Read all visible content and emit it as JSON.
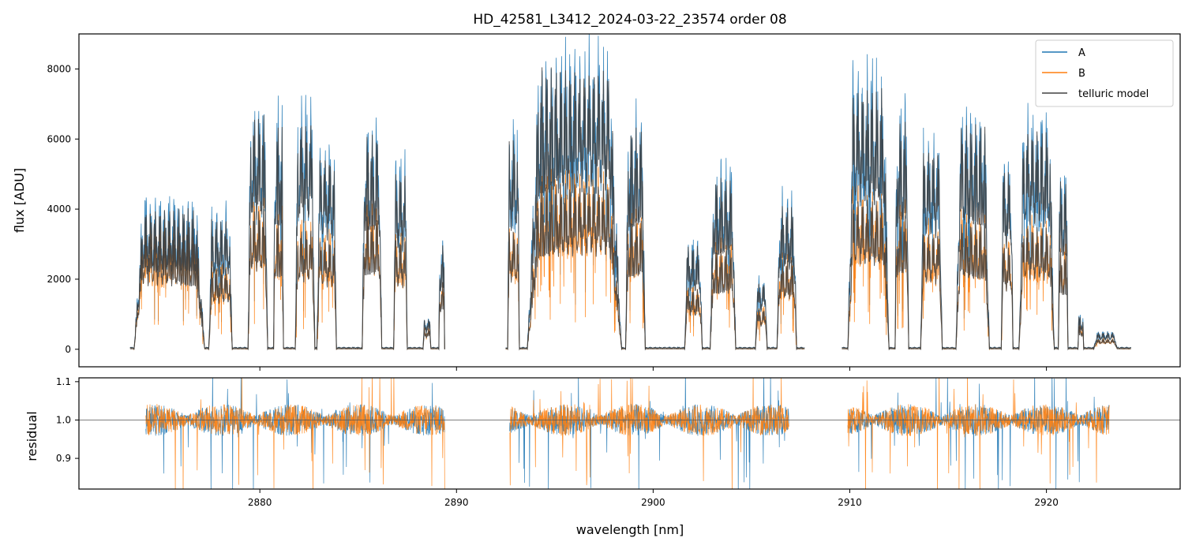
{
  "chart_data": [
    {
      "type": "line",
      "title": "HD_42581_L3412_2024-03-22_23574  order 08",
      "xlabel": "",
      "ylabel": "flux [ADU]",
      "xlim": [
        2870.8,
        2926.8
      ],
      "ylim": [
        -500,
        9000
      ],
      "yticks": [
        0,
        2000,
        4000,
        6000,
        8000
      ],
      "xticks": [
        2880,
        2890,
        2900,
        2910,
        2920
      ],
      "legend": "top-right",
      "series": [
        {
          "name": "A",
          "color": "#1f77b4"
        },
        {
          "name": "B",
          "color": "#ff7f0e"
        },
        {
          "name": "telluric model",
          "color": "#404040"
        }
      ],
      "segments": [
        [
          2873.4,
          2889.4
        ],
        [
          2892.5,
          2907.7
        ],
        [
          2909.6,
          2924.3
        ]
      ],
      "bands": [
        {
          "x": [
            2873.6,
            2877.2
          ],
          "a": 4200,
          "b": 3400
        },
        {
          "x": [
            2877.4,
            2878.6
          ],
          "a": 3900,
          "b": 2450
        },
        {
          "x": [
            2879.4,
            2880.4
          ],
          "a": 7000,
          "b": 4200
        },
        {
          "x": [
            2880.7,
            2881.2
          ],
          "a": 6700,
          "b": 3900
        },
        {
          "x": [
            2881.8,
            2882.8
          ],
          "a": 6800,
          "b": 3600
        },
        {
          "x": [
            2882.9,
            2883.9
          ],
          "a": 5800,
          "b": 3300
        },
        {
          "x": [
            2885.2,
            2886.2
          ],
          "a": 6400,
          "b": 4000
        },
        {
          "x": [
            2886.8,
            2887.5
          ],
          "a": 5300,
          "b": 3300
        },
        {
          "x": [
            2888.3,
            2888.7
          ],
          "a": 900,
          "b": 600
        },
        {
          "x": [
            2889.1,
            2889.4
          ],
          "a": 3100,
          "b": 2000
        },
        {
          "x": [
            2892.6,
            2893.2
          ],
          "a": 6400,
          "b": 3600
        },
        {
          "x": [
            2893.6,
            2898.4
          ],
          "a": 8400,
          "b": 5000
        },
        {
          "x": [
            2898.6,
            2899.6
          ],
          "a": 6600,
          "b": 3900
        },
        {
          "x": [
            2901.6,
            2902.5
          ],
          "a": 3100,
          "b": 1800
        },
        {
          "x": [
            2902.9,
            2904.2
          ],
          "a": 5100,
          "b": 3000
        },
        {
          "x": [
            2905.2,
            2905.8
          ],
          "a": 2000,
          "b": 1200
        },
        {
          "x": [
            2906.3,
            2907.3
          ],
          "a": 4300,
          "b": 2700
        },
        {
          "x": [
            2909.9,
            2912.0
          ],
          "a": 7800,
          "b": 4500
        },
        {
          "x": [
            2912.3,
            2913.0
          ],
          "a": 6800,
          "b": 4000
        },
        {
          "x": [
            2913.6,
            2914.7
          ],
          "a": 6000,
          "b": 3500
        },
        {
          "x": [
            2915.4,
            2917.1
          ],
          "a": 6700,
          "b": 3800
        },
        {
          "x": [
            2917.7,
            2918.3
          ],
          "a": 5400,
          "b": 3100
        },
        {
          "x": [
            2918.6,
            2920.4
          ],
          "a": 6600,
          "b": 3700
        },
        {
          "x": [
            2920.6,
            2921.1
          ],
          "a": 5000,
          "b": 2900
        },
        {
          "x": [
            2921.6,
            2921.9
          ],
          "a": 1000,
          "b": 700
        },
        {
          "x": [
            2922.4,
            2923.6
          ],
          "a": 500,
          "b": 300
        }
      ]
    },
    {
      "type": "line",
      "title": "",
      "xlabel": "wavelength [nm]",
      "ylabel": "residual",
      "xlim": [
        2870.8,
        2926.8
      ],
      "ylim": [
        0.82,
        1.11
      ],
      "yticks": [
        0.9,
        1.0,
        1.1
      ],
      "ytick_labels": [
        "0.9",
        "1.0",
        "1.1"
      ],
      "xticks": [
        2880,
        2890,
        2900,
        2910,
        2920
      ],
      "reference_line": 1.0,
      "segments": [
        [
          2874.2,
          2889.4
        ],
        [
          2892.7,
          2906.9
        ],
        [
          2909.9,
          2923.2
        ]
      ],
      "series": [
        {
          "name": "A",
          "color": "#1f77b4"
        },
        {
          "name": "B",
          "color": "#ff7f0e"
        }
      ]
    }
  ]
}
